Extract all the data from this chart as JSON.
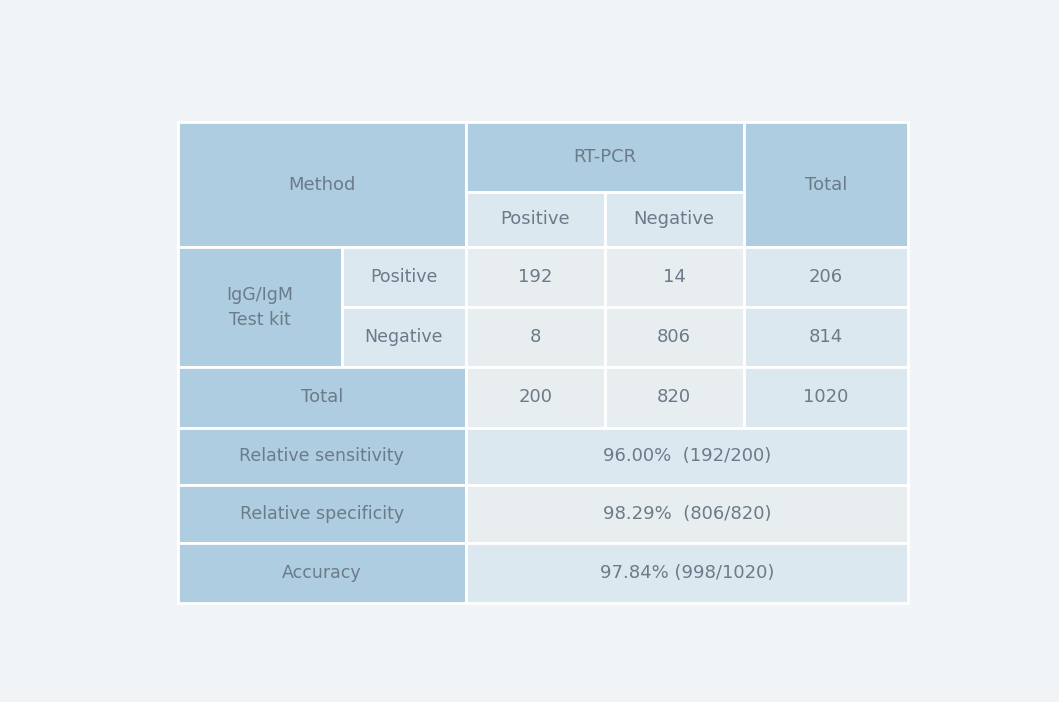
{
  "background_color": "#f0f4f7",
  "light_blue": "#aecde0",
  "light_gray": "#dce8ef",
  "white": "#e8edf0",
  "text_color": "#6b7b8a",
  "border_color": "#ffffff",
  "font_size_header": 13,
  "font_size_data": 13,
  "font_size_label": 12.5,
  "metrics": {
    "sensitivity_label": "Relative sensitivity",
    "sensitivity_value": "96.00%  (192/200)",
    "specificity_label": "Relative specificity",
    "specificity_value": "98.29%  (806/820)",
    "accuracy_label": "Accuracy",
    "accuracy_value": "97.84% (998/1020)"
  },
  "data": {
    "pos_pos": "192",
    "pos_neg": "14",
    "pos_total": "206",
    "neg_pos": "8",
    "neg_neg": "806",
    "neg_total": "814",
    "total_pos": "200",
    "total_neg": "820",
    "total_total": "1020"
  },
  "col_boundaries": [
    0.0,
    0.225,
    0.395,
    0.585,
    0.775,
    1.0
  ],
  "row_boundaries": [
    1.0,
    0.855,
    0.74,
    0.615,
    0.49,
    0.365,
    0.245,
    0.125,
    0.0
  ]
}
